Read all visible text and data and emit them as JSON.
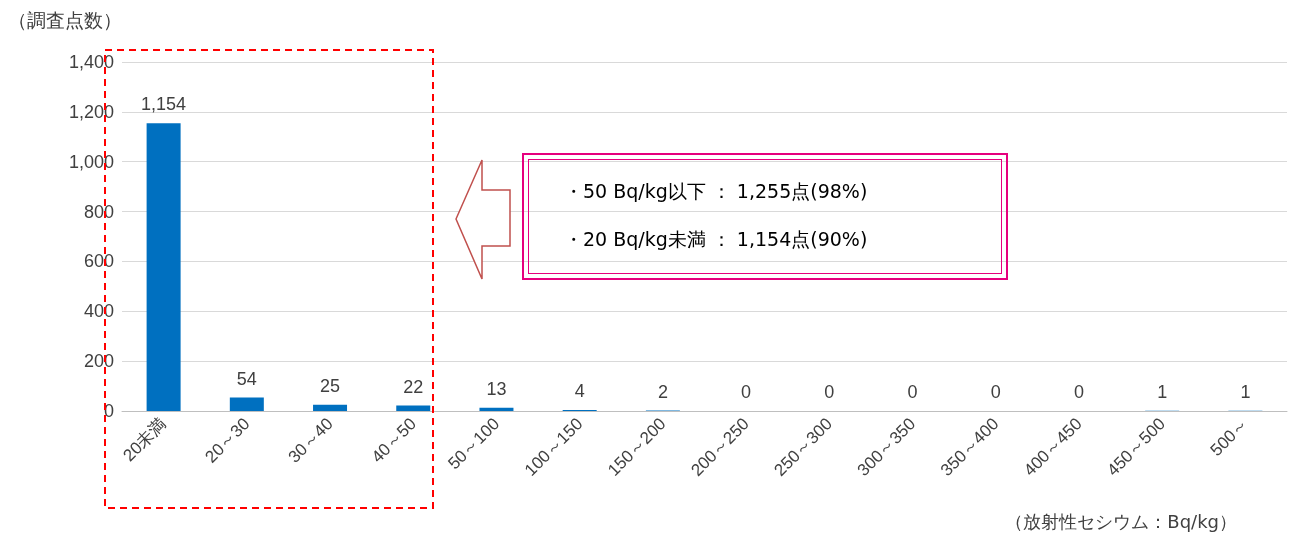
{
  "chart_data": {
    "type": "bar",
    "ylabel": "（調査点数）",
    "xlabel": "（放射性セシウム：Bq/kg）",
    "categories": [
      "20未満",
      "20～30",
      "30～40",
      "40～50",
      "50～100",
      "100～150",
      "150～200",
      "200～250",
      "250～300",
      "300～350",
      "350～400",
      "400～450",
      "450～500",
      "500～"
    ],
    "values": [
      1154,
      54,
      25,
      22,
      13,
      4,
      2,
      0,
      0,
      0,
      0,
      0,
      1,
      1
    ],
    "value_labels": [
      "1,154",
      "54",
      "25",
      "22",
      "13",
      "4",
      "2",
      "0",
      "0",
      "0",
      "0",
      "0",
      "1",
      "1"
    ],
    "color": "#0070c0",
    "ylim": [
      0,
      1400
    ],
    "yticks": [
      0,
      200,
      400,
      600,
      800,
      {
        "value": 1000,
        "label": "1,000"
      },
      {
        "value": 1200,
        "label": "1,200"
      },
      {
        "value": 1400,
        "label": "1,400"
      }
    ],
    "grid": "y",
    "annotations": [
      "・50 Bq/kg以下 ： 1,255点(98%)",
      "・20 Bq/kg未満 ： 1,154点(90%)"
    ]
  }
}
